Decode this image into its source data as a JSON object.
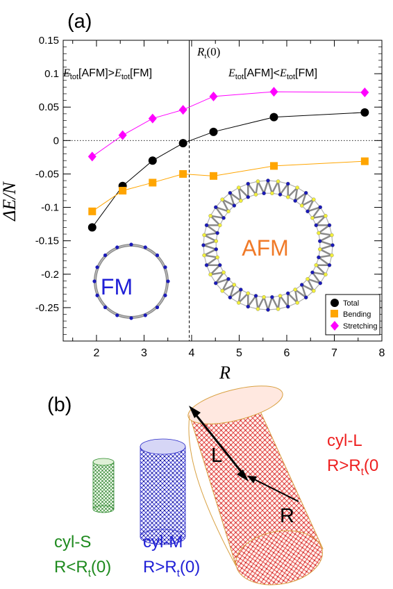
{
  "panel_a": {
    "label": "(a)",
    "rt_label_main": "R",
    "rt_label_sub": "t",
    "rt_label_tail": "(0)",
    "left_annotation": {
      "e1": "E",
      "s1": "tot",
      "m1": "[AFM]>",
      "e2": "E",
      "s2": "tot",
      "m2": "[FM]"
    },
    "right_annotation": {
      "e1": "E",
      "s1": "tot",
      "m1": "[AFM]<",
      "e2": "E",
      "s2": "tot",
      "m2": "[FM]"
    },
    "inset_fm_label": "FM",
    "inset_afm_label": "AFM",
    "colors": {
      "total": "#000000",
      "bending": "#ffa500",
      "stretching": "#ff00ff",
      "fm_text": "#1f1fd6",
      "afm_text": "#f07a28",
      "blue_atom": "#1a1ab8",
      "yellow_atom": "#f2ef3c"
    }
  },
  "chart_data": {
    "type": "line",
    "xlabel": "R",
    "ylabel": "ΔE/N",
    "xlim": [
      1.3,
      8
    ],
    "ylim": [
      -0.3,
      0.15
    ],
    "xticks": [
      "2",
      "3",
      "4",
      "5",
      "6",
      "7",
      "8"
    ],
    "yticks": [
      "0.15",
      "0.1",
      "0.05",
      "0",
      "-0.05",
      "-0.1",
      "-0.15",
      "-0.2",
      "-0.25"
    ],
    "xtick_values": [
      2,
      3,
      4,
      5,
      6,
      7,
      8
    ],
    "ytick_values": [
      0.15,
      0.1,
      0.05,
      0,
      -0.05,
      -0.1,
      -0.15,
      -0.2,
      -0.25
    ],
    "vline_x": 3.95,
    "hline_y": 0,
    "legend_position": "bottom-right",
    "series": [
      {
        "name": "Total",
        "marker": "circle",
        "x": [
          1.91,
          2.55,
          3.18,
          3.82,
          4.46,
          5.73,
          7.64
        ],
        "y": [
          -0.13,
          -0.068,
          -0.03,
          -0.004,
          0.013,
          0.035,
          0.042
        ]
      },
      {
        "name": "Bending",
        "marker": "square",
        "x": [
          1.91,
          2.55,
          3.18,
          3.82,
          4.46,
          5.73,
          7.64
        ],
        "y": [
          -0.106,
          -0.075,
          -0.063,
          -0.05,
          -0.053,
          -0.038,
          -0.031
        ]
      },
      {
        "name": "Stretching",
        "marker": "diamond",
        "x": [
          1.91,
          2.55,
          3.18,
          3.82,
          4.46,
          5.73,
          7.64
        ],
        "y": [
          -0.024,
          0.008,
          0.033,
          0.046,
          0.066,
          0.073,
          0.072
        ]
      }
    ]
  },
  "panel_b": {
    "label": "(b)",
    "cyl_s": {
      "name": "cyl-S",
      "cond_main": "R<R",
      "cond_sub": "t",
      "cond_tail": "(0)",
      "color": "#1e8a1e"
    },
    "cyl_m": {
      "name": "cyl-M",
      "cond_main": "R>R",
      "cond_sub": "t",
      "cond_tail": "(0)",
      "color": "#1f1fd6"
    },
    "cyl_l": {
      "name": "cyl-L",
      "cond_main": "R>R",
      "cond_sub": "t",
      "cond_tail": "(0",
      "color": "#ee2020"
    },
    "length_label": "L",
    "radius_label": "R"
  }
}
